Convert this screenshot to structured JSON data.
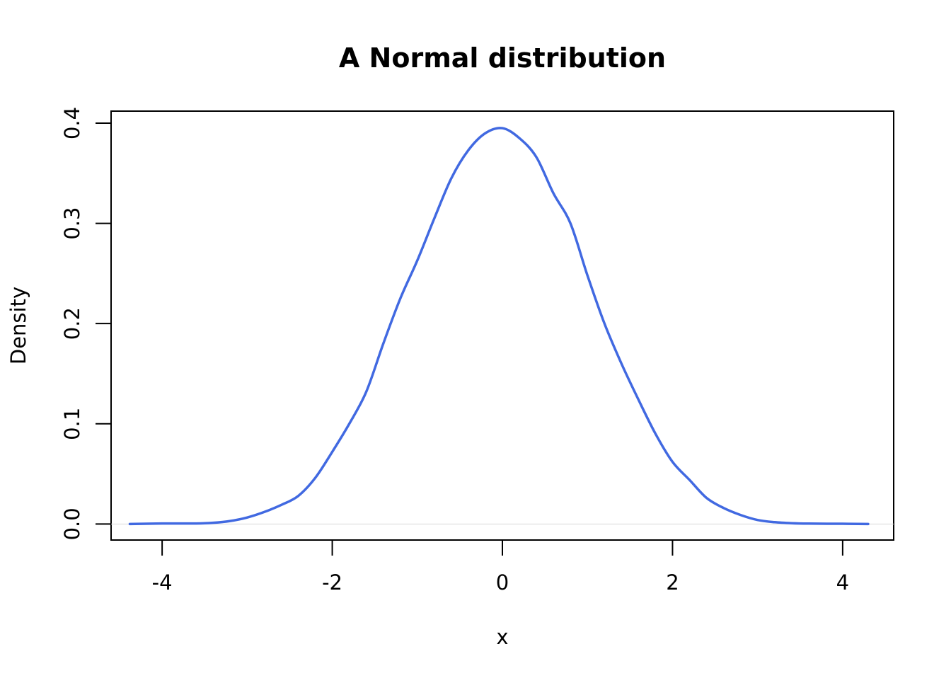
{
  "chart_data": {
    "type": "line",
    "title": "A Normal distribution",
    "xlabel": "x",
    "ylabel": "Density",
    "xlim": [
      -4.6,
      4.6
    ],
    "ylim": [
      -0.016,
      0.412
    ],
    "x_ticks": [
      -4,
      -2,
      0,
      2,
      4
    ],
    "x_tick_labels": [
      "-4",
      "-2",
      "0",
      "2",
      "4"
    ],
    "y_ticks": [
      0.0,
      0.1,
      0.2,
      0.3,
      0.4
    ],
    "y_tick_labels": [
      "0.0",
      "0.1",
      "0.2",
      "0.3",
      "0.4"
    ],
    "grid": false,
    "zero_line": true,
    "series": [
      {
        "color": "#4169E1",
        "x": [
          -4.38,
          -4.0,
          -3.6,
          -3.4,
          -3.2,
          -3.0,
          -2.8,
          -2.6,
          -2.4,
          -2.2,
          -2.0,
          -1.8,
          -1.6,
          -1.4,
          -1.2,
          -1.0,
          -0.8,
          -0.6,
          -0.4,
          -0.2,
          0.0,
          0.2,
          0.4,
          0.6,
          0.8,
          1.0,
          1.2,
          1.4,
          1.6,
          1.8,
          2.0,
          2.2,
          2.4,
          2.6,
          2.8,
          3.0,
          3.2,
          3.4,
          3.6,
          4.0,
          4.3
        ],
        "y": [
          0.0,
          0.0005,
          0.0005,
          0.0012,
          0.003,
          0.0065,
          0.012,
          0.019,
          0.028,
          0.046,
          0.072,
          0.1,
          0.132,
          0.18,
          0.225,
          0.263,
          0.305,
          0.345,
          0.373,
          0.39,
          0.395,
          0.385,
          0.366,
          0.33,
          0.3,
          0.248,
          0.2,
          0.16,
          0.124,
          0.09,
          0.062,
          0.044,
          0.026,
          0.016,
          0.009,
          0.004,
          0.0018,
          0.0008,
          0.0004,
          0.0002,
          0.0
        ]
      }
    ]
  }
}
